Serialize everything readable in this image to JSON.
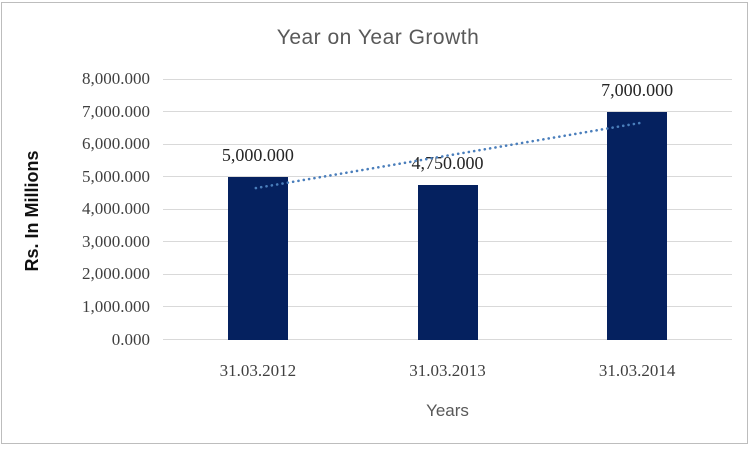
{
  "chart_data": {
    "type": "bar",
    "title": "Year on Year Growth",
    "xlabel": "Years",
    "ylabel": "Rs. In Millions",
    "categories": [
      "31.03.2012",
      "31.03.2013",
      "31.03.2014"
    ],
    "values": [
      5000000,
      4750000,
      7000000
    ],
    "data_labels": [
      "5,000.000",
      "4,750.000",
      "7,000.000"
    ],
    "ylim": [
      0,
      8000000
    ],
    "ytick_values": [
      0,
      1000000,
      2000000,
      3000000,
      4000000,
      5000000,
      6000000,
      7000000,
      8000000
    ],
    "ytick_labels": [
      "0.000",
      "1,000.000",
      "2,000.000",
      "3,000.000",
      "4,000.000",
      "5,000.000",
      "6,000.000",
      "7,000.000",
      "8,000.000"
    ],
    "grid": true,
    "legend": "none",
    "trendline": {
      "style": "dotted",
      "start_value": 4650000,
      "end_value": 6650000
    },
    "colors": {
      "bar": "#05215F",
      "trend": "#4A7EBB",
      "grid": "#D9D9D9",
      "title_text": "#595959",
      "axis_title_text": "#595959",
      "tick_text": "#3F3F3F",
      "data_label_text": "#262626",
      "frame_border": "#BDBDBD"
    }
  }
}
